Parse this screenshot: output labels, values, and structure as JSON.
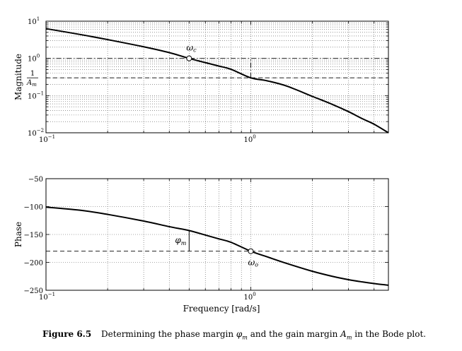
{
  "caption": {
    "figure_label": "Figure 6.5",
    "text_before": "Determining the phase margin",
    "phase_symbol": "φ",
    "phase_sub": "m",
    "text_middle": "and the gain margin",
    "gain_symbol": "A",
    "gain_sub": "m",
    "text_after": "in the Bode plot."
  },
  "chart_data": [
    {
      "type": "line",
      "panel": "magnitude",
      "title": "",
      "xlabel": "",
      "ylabel": "Magnitude",
      "x_scale": "log",
      "y_scale": "log",
      "xlim": [
        0.1,
        4.7
      ],
      "ylim": [
        0.01,
        10
      ],
      "grid": true,
      "x_ticks": [
        {
          "base": "10",
          "exp": "−1",
          "value": 0.1
        },
        {
          "base": "10",
          "exp": "0",
          "value": 1
        }
      ],
      "y_ticks": [
        {
          "base": "10",
          "exp": "1",
          "value": 10
        },
        {
          "base": "10",
          "exp": "0",
          "value": 1
        },
        {
          "base": "10",
          "exp": "−1",
          "value": 0.1
        },
        {
          "base": "10",
          "exp": "−2",
          "value": 0.01
        }
      ],
      "extra_y_tick": {
        "num": "1",
        "den_base": "A",
        "den_sub": "m",
        "value": 0.3
      },
      "series": [
        {
          "x": [
            0.1,
            0.15,
            0.2,
            0.3,
            0.4,
            0.5,
            0.6,
            0.7,
            0.8,
            1.0,
            1.2,
            1.5,
            2.0,
            2.5,
            3.0,
            3.5,
            4.0,
            4.7
          ],
          "y": [
            6.3,
            4.3,
            3.2,
            2.05,
            1.43,
            1.0,
            0.77,
            0.62,
            0.51,
            0.3,
            0.25,
            0.18,
            0.095,
            0.058,
            0.037,
            0.024,
            0.017,
            0.01
          ]
        }
      ],
      "reference_lines": [
        {
          "axis": "y",
          "value": 1,
          "style": "dashdot"
        },
        {
          "axis": "y",
          "value": 0.3,
          "style": "dashed"
        },
        {
          "axis": "x",
          "value": 1,
          "style": "dashdot",
          "y_range": [
            0.3,
            1
          ]
        }
      ],
      "markers": [
        {
          "x": 0.5,
          "y": 1,
          "label": "ω",
          "sub": "c"
        }
      ]
    },
    {
      "type": "line",
      "panel": "phase",
      "title": "",
      "xlabel": "Frequency [rad/s]",
      "ylabel": "Phase",
      "x_scale": "log",
      "y_scale": "linear",
      "xlim": [
        0.1,
        4.7
      ],
      "ylim": [
        -250,
        -50
      ],
      "grid": true,
      "x_ticks": [
        {
          "base": "10",
          "exp": "−1",
          "value": 0.1
        },
        {
          "base": "10",
          "exp": "0",
          "value": 1
        }
      ],
      "y_ticks": [
        -50,
        -100,
        -150,
        -200,
        -250
      ],
      "series": [
        {
          "x": [
            0.1,
            0.15,
            0.2,
            0.3,
            0.4,
            0.5,
            0.6,
            0.7,
            0.8,
            1.0,
            1.2,
            1.5,
            2.0,
            2.5,
            3.0,
            3.5,
            4.0,
            4.7
          ],
          "y": [
            -101,
            -107,
            -114,
            -126,
            -136,
            -143,
            -151,
            -158,
            -164,
            -180,
            -190,
            -202,
            -216,
            -225,
            -231,
            -235,
            -238,
            -241
          ]
        }
      ],
      "reference_lines": [
        {
          "axis": "y",
          "value": -180,
          "style": "dashed"
        }
      ],
      "markers": [
        {
          "x": 1,
          "y": -180,
          "label": "ω",
          "sub": "o"
        }
      ],
      "annotation": {
        "x": 0.5,
        "y_from": -180,
        "y_to": -143,
        "label": "φ",
        "sub": "m"
      }
    }
  ]
}
